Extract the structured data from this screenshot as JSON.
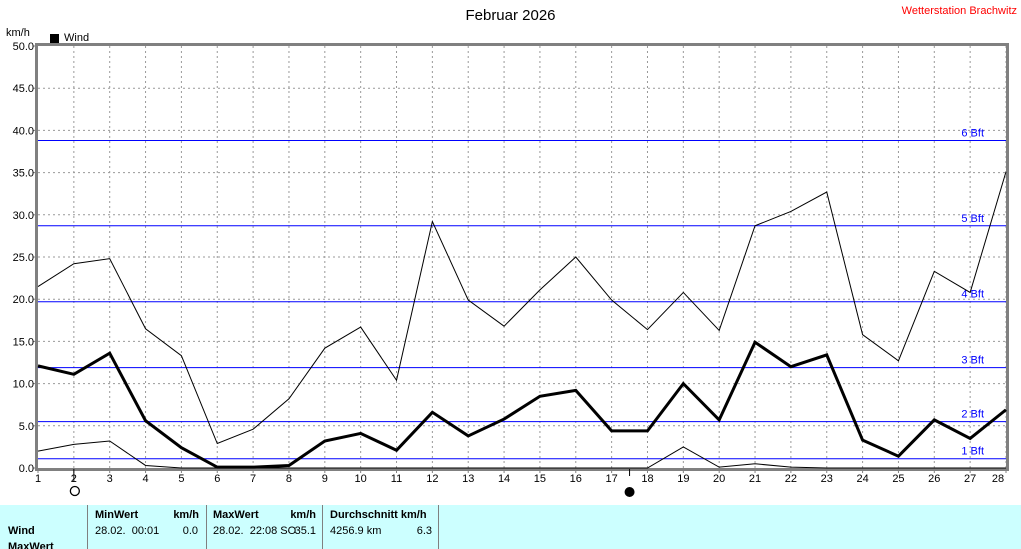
{
  "header": {
    "title": "Februar 2026",
    "station": "Wetterstation Brachwitz"
  },
  "legend": {
    "label": "Wind",
    "swatch_color": "#000000"
  },
  "axes": {
    "unit_label": "km/h",
    "y_ticks": [
      "50.0",
      "45.0",
      "40.0",
      "35.0",
      "30.0",
      "25.0",
      "20.0",
      "15.0",
      "10.0",
      "5.0",
      "0.0"
    ],
    "y_min": 0,
    "y_max": 50,
    "x_days": [
      1,
      2,
      3,
      4,
      5,
      6,
      7,
      8,
      9,
      10,
      11,
      12,
      13,
      14,
      15,
      16,
      17,
      18,
      19,
      20,
      21,
      22,
      23,
      24,
      25,
      26,
      27,
      28
    ]
  },
  "beaufort_lines": [
    {
      "label": "1 Bft",
      "kmh": 1.1
    },
    {
      "label": "2 Bft",
      "kmh": 5.5
    },
    {
      "label": "3 Bft",
      "kmh": 11.9
    },
    {
      "label": "4 Bft",
      "kmh": 19.7
    },
    {
      "label": "5 Bft",
      "kmh": 28.7
    },
    {
      "label": "6 Bft",
      "kmh": 38.8
    }
  ],
  "moon_markers": [
    {
      "name": "full-moon",
      "symbol": "circle-outline",
      "day": 2
    },
    {
      "name": "new-moon",
      "symbol": "circle-filled",
      "day": 17.5
    }
  ],
  "chart_data": {
    "type": "line",
    "title": "Februar 2026",
    "xlabel": "",
    "ylabel": "km/h",
    "ylim": [
      0,
      50
    ],
    "grid": true,
    "x": [
      1,
      2,
      3,
      4,
      5,
      6,
      7,
      8,
      9,
      10,
      11,
      12,
      13,
      14,
      15,
      16,
      17,
      18,
      19,
      20,
      21,
      22,
      23,
      24,
      25,
      26,
      27,
      28
    ],
    "series": [
      {
        "name": "Wind MaxWert (thin upper line)",
        "values": [
          21.5,
          24.2,
          24.8,
          16.5,
          13.3,
          2.9,
          4.6,
          8.2,
          14.2,
          16.7,
          10.4,
          29.2,
          19.9,
          16.8,
          21.1,
          25.0,
          19.9,
          16.4,
          20.8,
          16.3,
          28.7,
          30.4,
          32.7,
          15.8,
          12.7,
          23.3,
          20.8,
          35.1
        ]
      },
      {
        "name": "Wind Durchschnitt (thick line)",
        "values": [
          12.1,
          11.1,
          13.6,
          5.6,
          2.4,
          0.1,
          0.1,
          0.3,
          3.2,
          4.1,
          2.1,
          6.6,
          3.8,
          5.8,
          8.5,
          9.2,
          4.4,
          4.4,
          10.0,
          5.7,
          14.9,
          12.0,
          13.4,
          3.3,
          1.4,
          5.7,
          3.5,
          6.9
        ]
      },
      {
        "name": "Wind MinWert (thin lower line)",
        "values": [
          2.0,
          2.8,
          3.2,
          0.3,
          0.0,
          0.0,
          0.0,
          0.0,
          0.0,
          0.0,
          0.0,
          0.0,
          0.0,
          0.0,
          0.0,
          0.0,
          0.0,
          0.0,
          2.5,
          0.1,
          0.5,
          0.1,
          0.0,
          0.0,
          0.0,
          0.0,
          0.0,
          0.0
        ]
      }
    ]
  },
  "table": {
    "row_wind_label": "Wind",
    "row_maxwert_label": "MaxWert",
    "min": {
      "header": "MinWert",
      "unit": "km/h",
      "date": "28.02.  00:01",
      "value": "0.0"
    },
    "max": {
      "header": "MaxWert",
      "unit": "km/h",
      "date": "28.02.  22:08 SO",
      "value": "35.1"
    },
    "avg": {
      "header": "Durchschnitt km/h",
      "distance": "4256.9 km",
      "value": "6.3"
    }
  },
  "colors": {
    "beaufort_blue": "#0000ff",
    "station_red": "#ff0000",
    "table_bg": "#ccffff",
    "grid_gray": "#999999",
    "axis_gray": "#808080",
    "line_black": "#000000"
  }
}
